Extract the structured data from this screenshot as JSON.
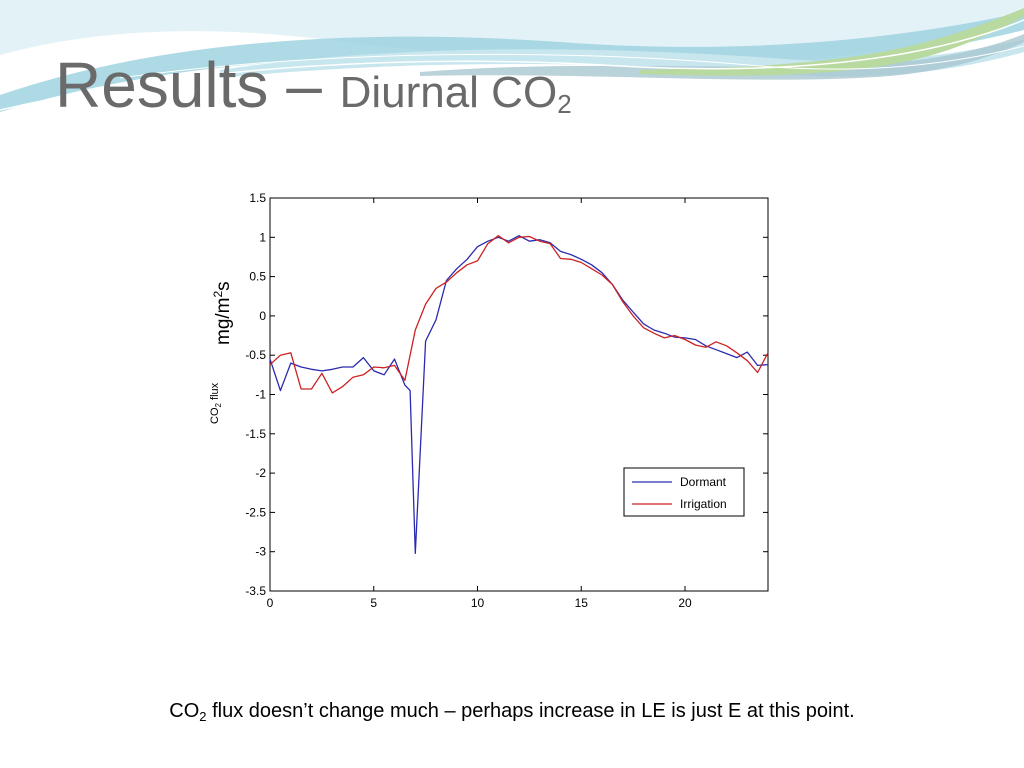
{
  "slide": {
    "title_main": "Results – ",
    "title_sub_prefix": "Diurnal CO",
    "title_sub_subscript": "2",
    "caption_prefix": "CO",
    "caption_subscript": "2",
    "caption_rest": " flux doesn’t change much – perhaps increase in LE is just E at this point."
  },
  "chart_data": {
    "type": "line",
    "title": "",
    "xlabel": "",
    "ylabel_units_main": "mg/m",
    "ylabel_units_sup": "2",
    "ylabel_units_end": "s",
    "ylabel_prefix": "CO",
    "ylabel_sub": "2",
    "ylabel_suffix": " flux",
    "xlim": [
      0,
      24
    ],
    "ylim": [
      -3.5,
      1.5
    ],
    "xticks": [
      0,
      5,
      10,
      15,
      20
    ],
    "yticks": [
      -3.5,
      -3,
      -2.5,
      -2,
      -1.5,
      -1,
      -0.5,
      0,
      0.5,
      1,
      1.5
    ],
    "xtick_labels": [
      "0",
      "5",
      "10",
      "15",
      "20"
    ],
    "ytick_labels": [
      "-3.5",
      "-3",
      "-2.5",
      "-2",
      "-1.5",
      "-1",
      "-0.5",
      "0",
      "0.5",
      "1",
      "1.5"
    ],
    "grid": false,
    "legend_position": "lower-right",
    "colors": {
      "Dormant": "#2b2bb0",
      "Irrigation": "#cc2222"
    },
    "series": [
      {
        "name": "Dormant",
        "points": [
          [
            0,
            -0.55
          ],
          [
            0.5,
            -0.95
          ],
          [
            1,
            -0.6
          ],
          [
            1.5,
            -0.65
          ],
          [
            2,
            -0.68
          ],
          [
            2.5,
            -0.7
          ],
          [
            3,
            -0.68
          ],
          [
            3.5,
            -0.65
          ],
          [
            4,
            -0.65
          ],
          [
            4.5,
            -0.53
          ],
          [
            5,
            -0.7
          ],
          [
            5.5,
            -0.75
          ],
          [
            6,
            -0.55
          ],
          [
            6.5,
            -0.88
          ],
          [
            6.75,
            -0.95
          ],
          [
            7,
            -3.02
          ],
          [
            7.5,
            -0.32
          ],
          [
            8,
            -0.05
          ],
          [
            8.5,
            0.45
          ],
          [
            9,
            0.6
          ],
          [
            9.5,
            0.72
          ],
          [
            10,
            0.88
          ],
          [
            10.5,
            0.95
          ],
          [
            11,
            1.0
          ],
          [
            11.5,
            0.95
          ],
          [
            12,
            1.02
          ],
          [
            12.5,
            0.95
          ],
          [
            13,
            0.97
          ],
          [
            13.5,
            0.93
          ],
          [
            14,
            0.82
          ],
          [
            14.5,
            0.78
          ],
          [
            15,
            0.72
          ],
          [
            15.5,
            0.65
          ],
          [
            16,
            0.55
          ],
          [
            16.5,
            0.4
          ],
          [
            17,
            0.2
          ],
          [
            17.5,
            0.05
          ],
          [
            18,
            -0.1
          ],
          [
            18.5,
            -0.18
          ],
          [
            19,
            -0.22
          ],
          [
            19.5,
            -0.27
          ],
          [
            20,
            -0.28
          ],
          [
            20.5,
            -0.3
          ],
          [
            21,
            -0.38
          ],
          [
            21.5,
            -0.43
          ],
          [
            22,
            -0.48
          ],
          [
            22.5,
            -0.53
          ],
          [
            23,
            -0.46
          ],
          [
            23.5,
            -0.63
          ],
          [
            24,
            -0.62
          ]
        ]
      },
      {
        "name": "Irrigation",
        "points": [
          [
            0,
            -0.62
          ],
          [
            0.5,
            -0.5
          ],
          [
            1,
            -0.47
          ],
          [
            1.5,
            -0.93
          ],
          [
            2,
            -0.93
          ],
          [
            2.5,
            -0.73
          ],
          [
            3,
            -0.98
          ],
          [
            3.5,
            -0.9
          ],
          [
            4,
            -0.78
          ],
          [
            4.5,
            -0.75
          ],
          [
            5,
            -0.65
          ],
          [
            5.5,
            -0.66
          ],
          [
            6,
            -0.63
          ],
          [
            6.5,
            -0.82
          ],
          [
            7,
            -0.18
          ],
          [
            7.5,
            0.15
          ],
          [
            8,
            0.35
          ],
          [
            8.5,
            0.43
          ],
          [
            9,
            0.55
          ],
          [
            9.5,
            0.65
          ],
          [
            10,
            0.7
          ],
          [
            10.5,
            0.92
          ],
          [
            11,
            1.02
          ],
          [
            11.5,
            0.93
          ],
          [
            12,
            1.0
          ],
          [
            12.5,
            1.01
          ],
          [
            13,
            0.95
          ],
          [
            13.5,
            0.92
          ],
          [
            14,
            0.73
          ],
          [
            14.5,
            0.72
          ],
          [
            15,
            0.68
          ],
          [
            15.5,
            0.6
          ],
          [
            16,
            0.52
          ],
          [
            16.5,
            0.4
          ],
          [
            17,
            0.18
          ],
          [
            17.5,
            0.0
          ],
          [
            18,
            -0.15
          ],
          [
            18.5,
            -0.22
          ],
          [
            19,
            -0.28
          ],
          [
            19.5,
            -0.25
          ],
          [
            20,
            -0.3
          ],
          [
            20.5,
            -0.37
          ],
          [
            21,
            -0.4
          ],
          [
            21.5,
            -0.33
          ],
          [
            22,
            -0.38
          ],
          [
            22.5,
            -0.47
          ],
          [
            23,
            -0.57
          ],
          [
            23.5,
            -0.72
          ],
          [
            24,
            -0.47
          ]
        ]
      }
    ]
  },
  "theme": {
    "title_color": "#6a6a6a",
    "wave_colors": [
      "#9fd3e0",
      "#c7e6ee",
      "#a9c7cf",
      "#b8d9a0",
      "#e3f2f6"
    ]
  }
}
